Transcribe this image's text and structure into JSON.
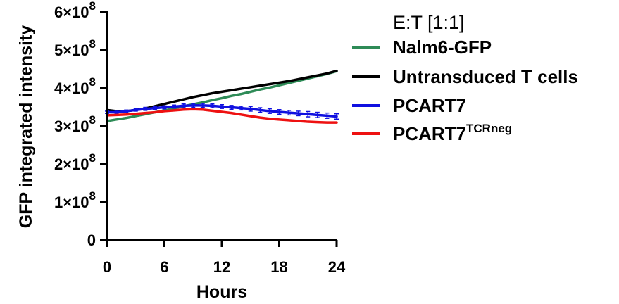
{
  "chart_data": {
    "type": "line",
    "xlabel": "Hours",
    "ylabel": "GFP integrated intensity",
    "xlim": [
      0,
      24
    ],
    "ylim": [
      0,
      600000000
    ],
    "x_ticks": [
      0,
      6,
      12,
      18,
      24
    ],
    "x_tick_labels": [
      "0",
      "6",
      "12",
      "18",
      "24"
    ],
    "y_ticks": [
      0,
      100000000,
      200000000,
      300000000,
      400000000,
      500000000,
      600000000
    ],
    "y_tick_labels": [
      {
        "base": "0",
        "exp": ""
      },
      {
        "base": "1×10",
        "exp": "8"
      },
      {
        "base": "2×10",
        "exp": "8"
      },
      {
        "base": "3×10",
        "exp": "8"
      },
      {
        "base": "4×10",
        "exp": "8"
      },
      {
        "base": "5×10",
        "exp": "8"
      },
      {
        "base": "6×10",
        "exp": "8"
      }
    ],
    "grid": false,
    "legend": {
      "title": "E:T [1:1]",
      "placement": "right"
    },
    "x": [
      0,
      1,
      2,
      3,
      4,
      5,
      6,
      7,
      8,
      9,
      10,
      11,
      12,
      13,
      14,
      15,
      16,
      17,
      18,
      19,
      20,
      21,
      22,
      23,
      24
    ],
    "series": [
      {
        "name": "Nalm6-GFP",
        "name_sup": "",
        "color": "#2e8b57",
        "values": [
          313000000,
          317000000,
          321000000,
          326000000,
          331000000,
          336000000,
          341000000,
          346000000,
          352000000,
          357000000,
          362000000,
          368000000,
          373000000,
          379000000,
          384000000,
          390000000,
          396000000,
          401000000,
          407000000,
          413000000,
          419000000,
          425000000,
          431000000,
          437000000,
          444000000
        ]
      },
      {
        "name": "Untransduced T cells",
        "name_sup": "",
        "color": "#000000",
        "values": [
          342000000,
          339000000,
          339000000,
          342000000,
          346000000,
          352000000,
          358000000,
          364000000,
          370000000,
          376000000,
          381000000,
          386000000,
          390000000,
          394000000,
          398000000,
          402000000,
          406000000,
          410000000,
          414000000,
          418000000,
          423000000,
          428000000,
          433000000,
          438000000,
          445000000
        ]
      },
      {
        "name": "PCART7",
        "name_sup": "",
        "color": "#1010e0",
        "error_bars": true,
        "values": [
          336000000,
          336000000,
          339000000,
          342000000,
          345000000,
          347000000,
          349000000,
          351000000,
          353000000,
          354000000,
          354000000,
          353000000,
          351000000,
          349000000,
          347000000,
          345000000,
          342000000,
          339000000,
          337000000,
          335000000,
          333000000,
          331000000,
          329000000,
          327000000,
          325000000
        ],
        "errors": [
          3000000,
          3000000,
          3000000,
          3000000,
          4000000,
          4000000,
          4000000,
          4000000,
          5000000,
          5000000,
          5000000,
          5000000,
          5000000,
          5000000,
          5000000,
          6000000,
          6000000,
          6000000,
          6000000,
          6000000,
          6000000,
          7000000,
          7000000,
          7000000,
          7000000
        ]
      },
      {
        "name": "PCART7",
        "name_sup": "TCRneg",
        "color": "#ee1111",
        "values": [
          328000000,
          329000000,
          330000000,
          332000000,
          334000000,
          336000000,
          339000000,
          341000000,
          343000000,
          344000000,
          343000000,
          340000000,
          337000000,
          334000000,
          330000000,
          326000000,
          322000000,
          319000000,
          317000000,
          315000000,
          313000000,
          311000000,
          310000000,
          309000000,
          309000000
        ]
      }
    ]
  }
}
